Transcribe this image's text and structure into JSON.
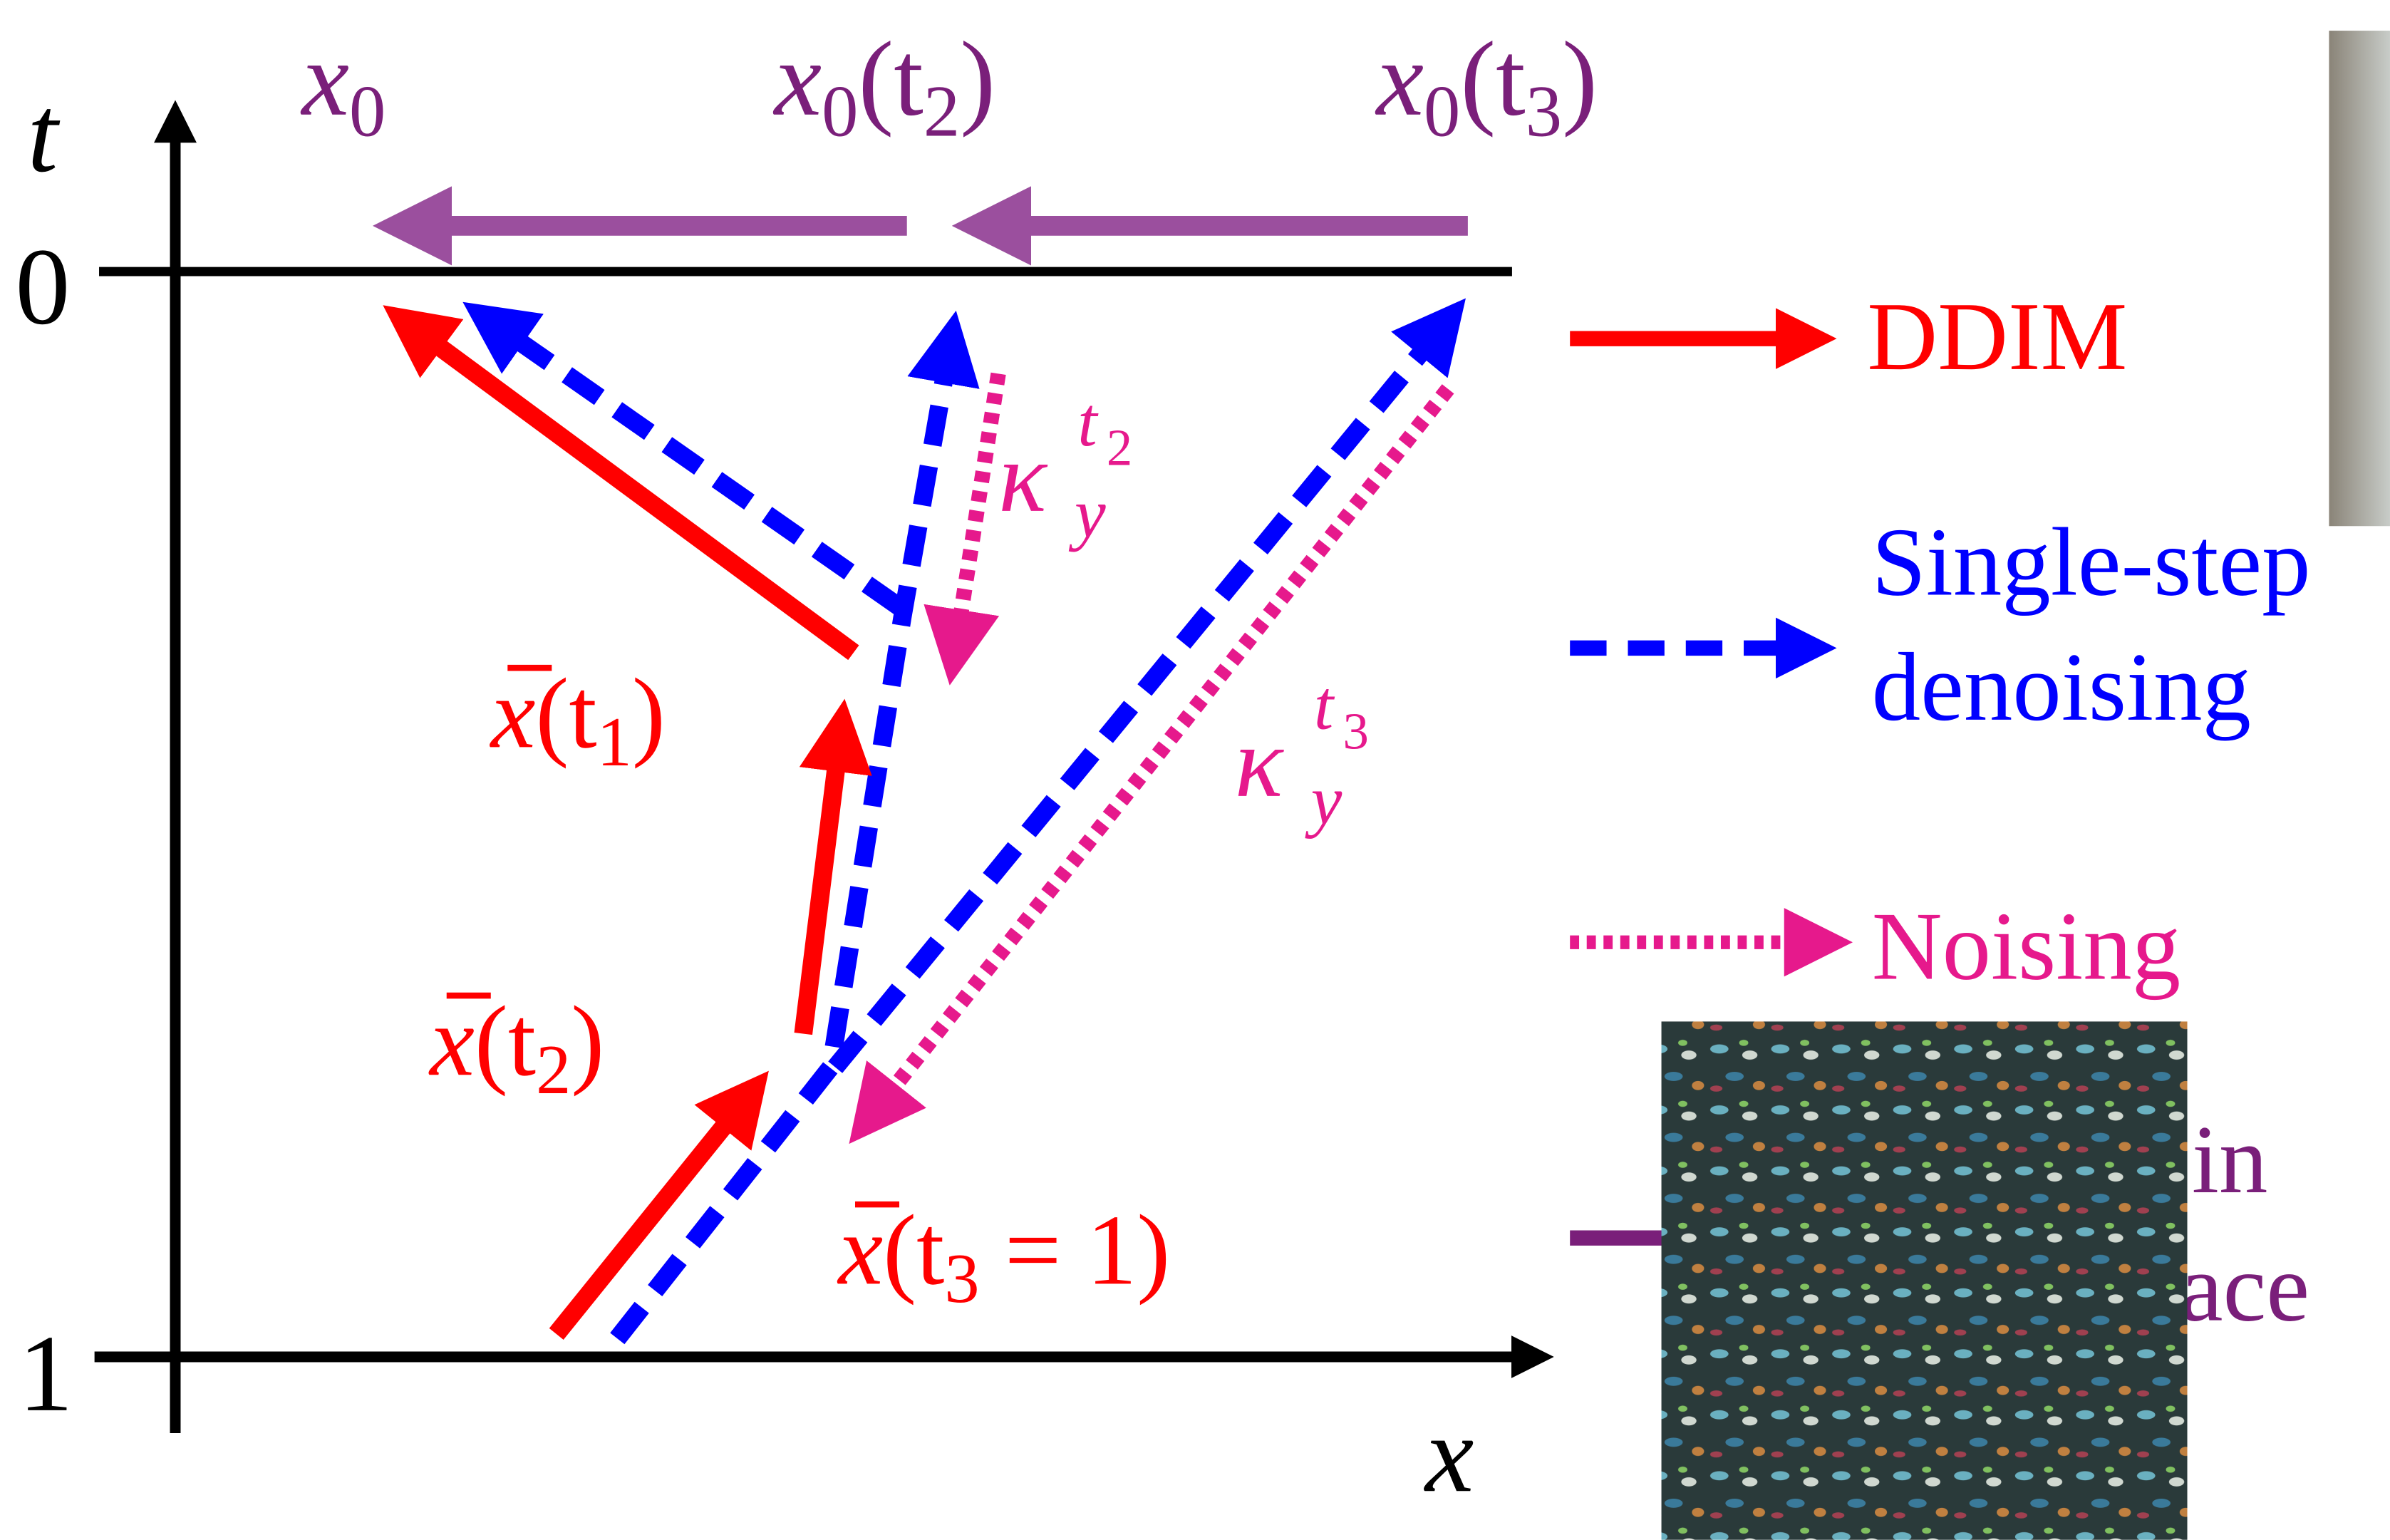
{
  "axes": {
    "t": "t",
    "zero": "0",
    "one": "1",
    "x": "x"
  },
  "top_labels": [
    [
      "x",
      "0"
    ],
    [
      "x",
      "0",
      "(t",
      "2",
      ")"
    ],
    [
      "x",
      "0",
      "(t",
      "3",
      ")"
    ]
  ],
  "points": [
    [
      "x",
      "(t",
      "1",
      ")"
    ],
    [
      "x",
      "(t",
      "2",
      ")"
    ],
    [
      "x",
      "(t",
      "3",
      " = 1)"
    ]
  ],
  "kappa": [
    [
      "κ",
      "t",
      "2",
      "y"
    ],
    [
      "κ",
      "t",
      "3",
      "y"
    ]
  ],
  "legend": [
    {
      "label": "DDIM"
    },
    {
      "label": [
        "Single-step",
        "denoising"
      ]
    },
    {
      "label": "Noising"
    },
    {
      "label": [
        "in",
        "ace"
      ]
    }
  ]
}
